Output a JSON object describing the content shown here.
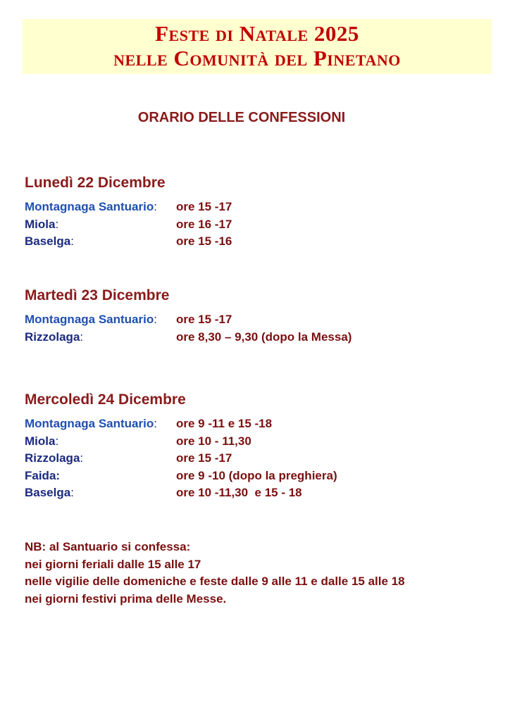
{
  "title": {
    "line1": "Feste di Natale 2025",
    "line2": "nelle Comunità del Pinetano"
  },
  "subtitle": "ORARIO DELLE CONFESSIONI",
  "days": [
    {
      "heading": "Lunedì 22 Dicembre",
      "rows": [
        {
          "place": "Montagnaga Santuario",
          "colon": ":",
          "time": "ore 15 -17"
        },
        {
          "place": "Miola",
          "colon": ":",
          "time": "ore 16 -17"
        },
        {
          "place": "Baselga",
          "colon": ":",
          "time": "ore 15 -16"
        }
      ]
    },
    {
      "heading": "Martedì 23 Dicembre",
      "rows": [
        {
          "place": "Montagnaga Santuario",
          "colon": ":",
          "time": "ore 15 -17"
        },
        {
          "place": "Rizzolaga",
          "colon": ":",
          "time": "ore 8,30 – 9,30 (dopo la Messa)"
        }
      ]
    },
    {
      "heading": "Mercoledì 24 Dicembre",
      "rows": [
        {
          "place": "Montagnaga Santuario",
          "colon": ":",
          "time": "ore 9 -11 e 15 -18"
        },
        {
          "place": "Miola",
          "colon": ":",
          "time": "ore 10 - 11,30"
        },
        {
          "place": "Rizzolaga",
          "colon": ":",
          "time": "ore 15 -17"
        },
        {
          "place": "Faida:",
          "colon": "",
          "time": "ore 9 -10 (dopo la preghiera)"
        },
        {
          "place": "Baselga",
          "colon": ":",
          "time": "ore 10 -11,30  e 15 - 18"
        }
      ]
    }
  ],
  "notes": [
    "NB: al Santuario si confessa:",
    "nei giorni feriali dalle 15 alle 17",
    "nelle vigilie delle domeniche e feste dalle 9 alle 11 e dalle 15 alle 18",
    "nei giorni festivi prima delle Messe."
  ]
}
